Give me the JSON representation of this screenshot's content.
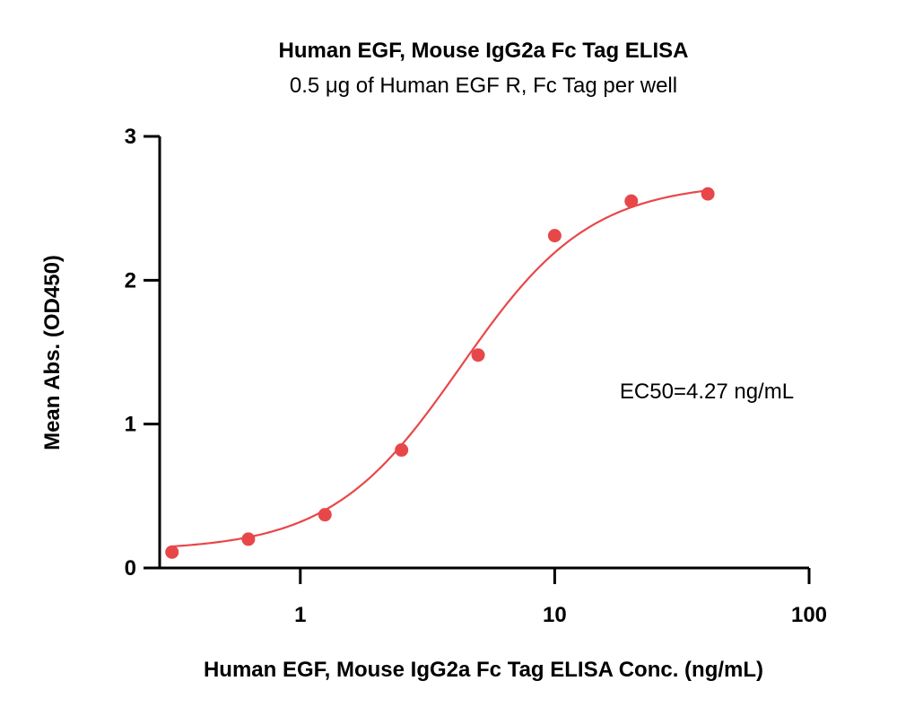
{
  "chart_data": {
    "type": "scatter",
    "title": "Human EGF, Mouse IgG2a Fc Tag ELISA",
    "subtitle": "0.5 μg of Human EGF R, Fc Tag per well",
    "xlabel": "Human EGF, Mouse IgG2a Fc Tag ELISA Conc. (ng/mL)",
    "ylabel": "Mean Abs. (OD450)",
    "x_scale": "log",
    "xlim": [
      0.28,
      100
    ],
    "ylim": [
      0,
      3
    ],
    "x_ticks": [
      1,
      10,
      100
    ],
    "x_tick_labels": [
      "1",
      "10",
      "100"
    ],
    "y_ticks": [
      0,
      1,
      2,
      3
    ],
    "y_tick_labels": [
      "0",
      "1",
      "2",
      "3"
    ],
    "grid": false,
    "color": "#e8474a",
    "series": [
      {
        "x": [
          0.313,
          0.625,
          1.25,
          2.5,
          5,
          10,
          20,
          40
        ],
        "y": [
          0.11,
          0.2,
          0.37,
          0.82,
          1.48,
          2.31,
          2.55,
          2.6
        ]
      }
    ],
    "fit": {
      "model": "4PL",
      "bottom": 0.12,
      "top": 2.68,
      "ec50": 4.27,
      "hill": 1.7,
      "x_range": [
        0.313,
        40
      ]
    },
    "annotation": "EC50=4.27 ng/mL"
  }
}
